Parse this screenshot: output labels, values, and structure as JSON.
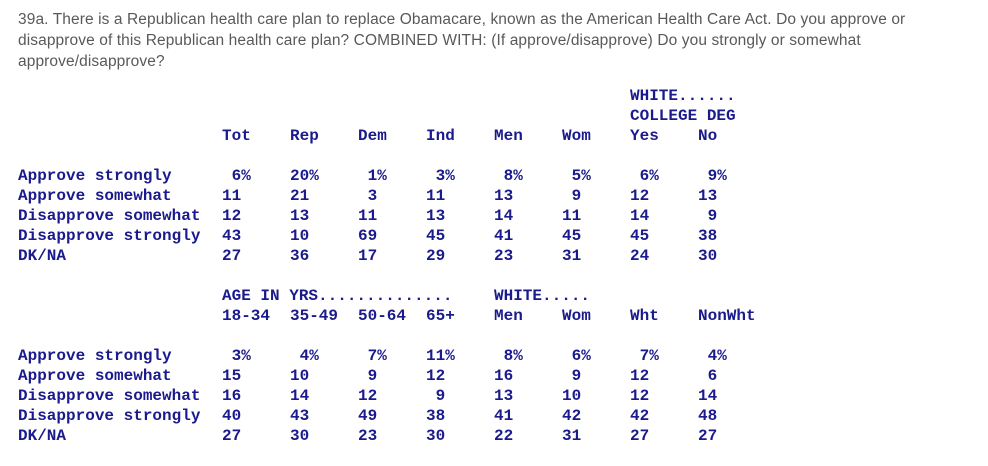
{
  "colors": {
    "question_text": "#58595b",
    "table_text": "#1a1a8c",
    "background": "#ffffff"
  },
  "question": {
    "number": "39a",
    "full_text": "39a. There is a Republican health care plan to replace Obamacare, known as the American Health Care Act. Do you approve or disapprove of this Republican health care plan? COMBINED WITH: (If approve/disapprove) Do you strongly or somewhat approve/disapprove?",
    "lines": [
      "39a. There is a Republican health care plan to replace Obamacare, known as the American Health Care Act. Do you approve or",
      "disapprove of this Republican health care plan? COMBINED WITH: (If approve/disapprove) Do you strongly or somewhat",
      "approve/disapprove?"
    ]
  },
  "tables": [
    {
      "name": "crosstab-party-gender-white-college",
      "group_rows": [
        [
          {
            "col": 7,
            "span": 2,
            "text": "WHITE......"
          }
        ],
        [
          {
            "col": 7,
            "span": 2,
            "text": "COLLEGE DEG"
          }
        ]
      ],
      "headers": [
        "Tot",
        "Rep",
        "Dem",
        "Ind",
        "Men",
        "Wom",
        "Yes",
        "No"
      ],
      "rows": [
        {
          "label": "Approve strongly",
          "values": [
            "6%",
            "20%",
            "1%",
            "3%",
            "8%",
            "5%",
            "6%",
            "9%"
          ]
        },
        {
          "label": "Approve somewhat",
          "values": [
            "11",
            "21",
            "3",
            "11",
            "13",
            "9",
            "12",
            "13"
          ]
        },
        {
          "label": "Disapprove somewhat",
          "values": [
            "12",
            "13",
            "11",
            "13",
            "14",
            "11",
            "14",
            "9"
          ]
        },
        {
          "label": "Disapprove strongly",
          "values": [
            "43",
            "10",
            "69",
            "45",
            "41",
            "45",
            "45",
            "38"
          ]
        },
        {
          "label": "DK/NA",
          "values": [
            "27",
            "36",
            "17",
            "29",
            "23",
            "31",
            "24",
            "30"
          ]
        }
      ]
    },
    {
      "name": "crosstab-age-white-gender-race",
      "group_rows": [
        [
          {
            "col": 1,
            "span": 4,
            "text": "AGE IN YRS.............."
          },
          {
            "col": 5,
            "span": 2,
            "text": "WHITE....."
          }
        ]
      ],
      "headers": [
        "18-34",
        "35-49",
        "50-64",
        "65+",
        "Men",
        "Wom",
        "Wht",
        "NonWht"
      ],
      "rows": [
        {
          "label": "Approve strongly",
          "values": [
            "3%",
            "4%",
            "7%",
            "11%",
            "8%",
            "6%",
            "7%",
            "4%"
          ]
        },
        {
          "label": "Approve somewhat",
          "values": [
            "15",
            "10",
            "9",
            "12",
            "16",
            "9",
            "12",
            "6"
          ]
        },
        {
          "label": "Disapprove somewhat",
          "values": [
            "16",
            "14",
            "12",
            "9",
            "13",
            "10",
            "12",
            "14"
          ]
        },
        {
          "label": "Disapprove strongly",
          "values": [
            "40",
            "43",
            "49",
            "38",
            "41",
            "42",
            "42",
            "48"
          ]
        },
        {
          "label": "DK/NA",
          "values": [
            "27",
            "30",
            "23",
            "30",
            "22",
            "31",
            "27",
            "27"
          ]
        }
      ]
    }
  ]
}
